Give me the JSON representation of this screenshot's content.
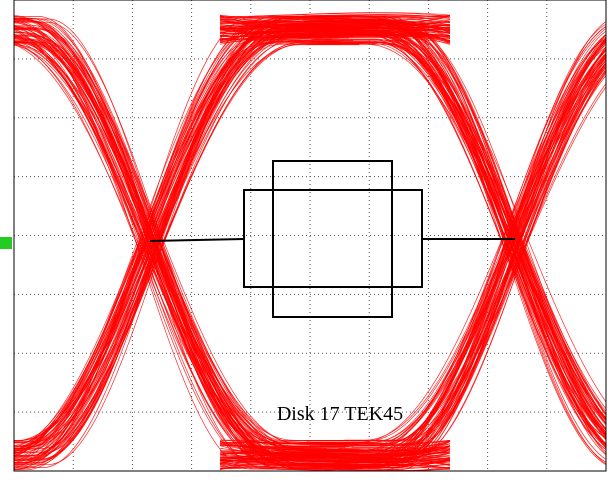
{
  "annotation": "Disk 17 TEK45"
}
